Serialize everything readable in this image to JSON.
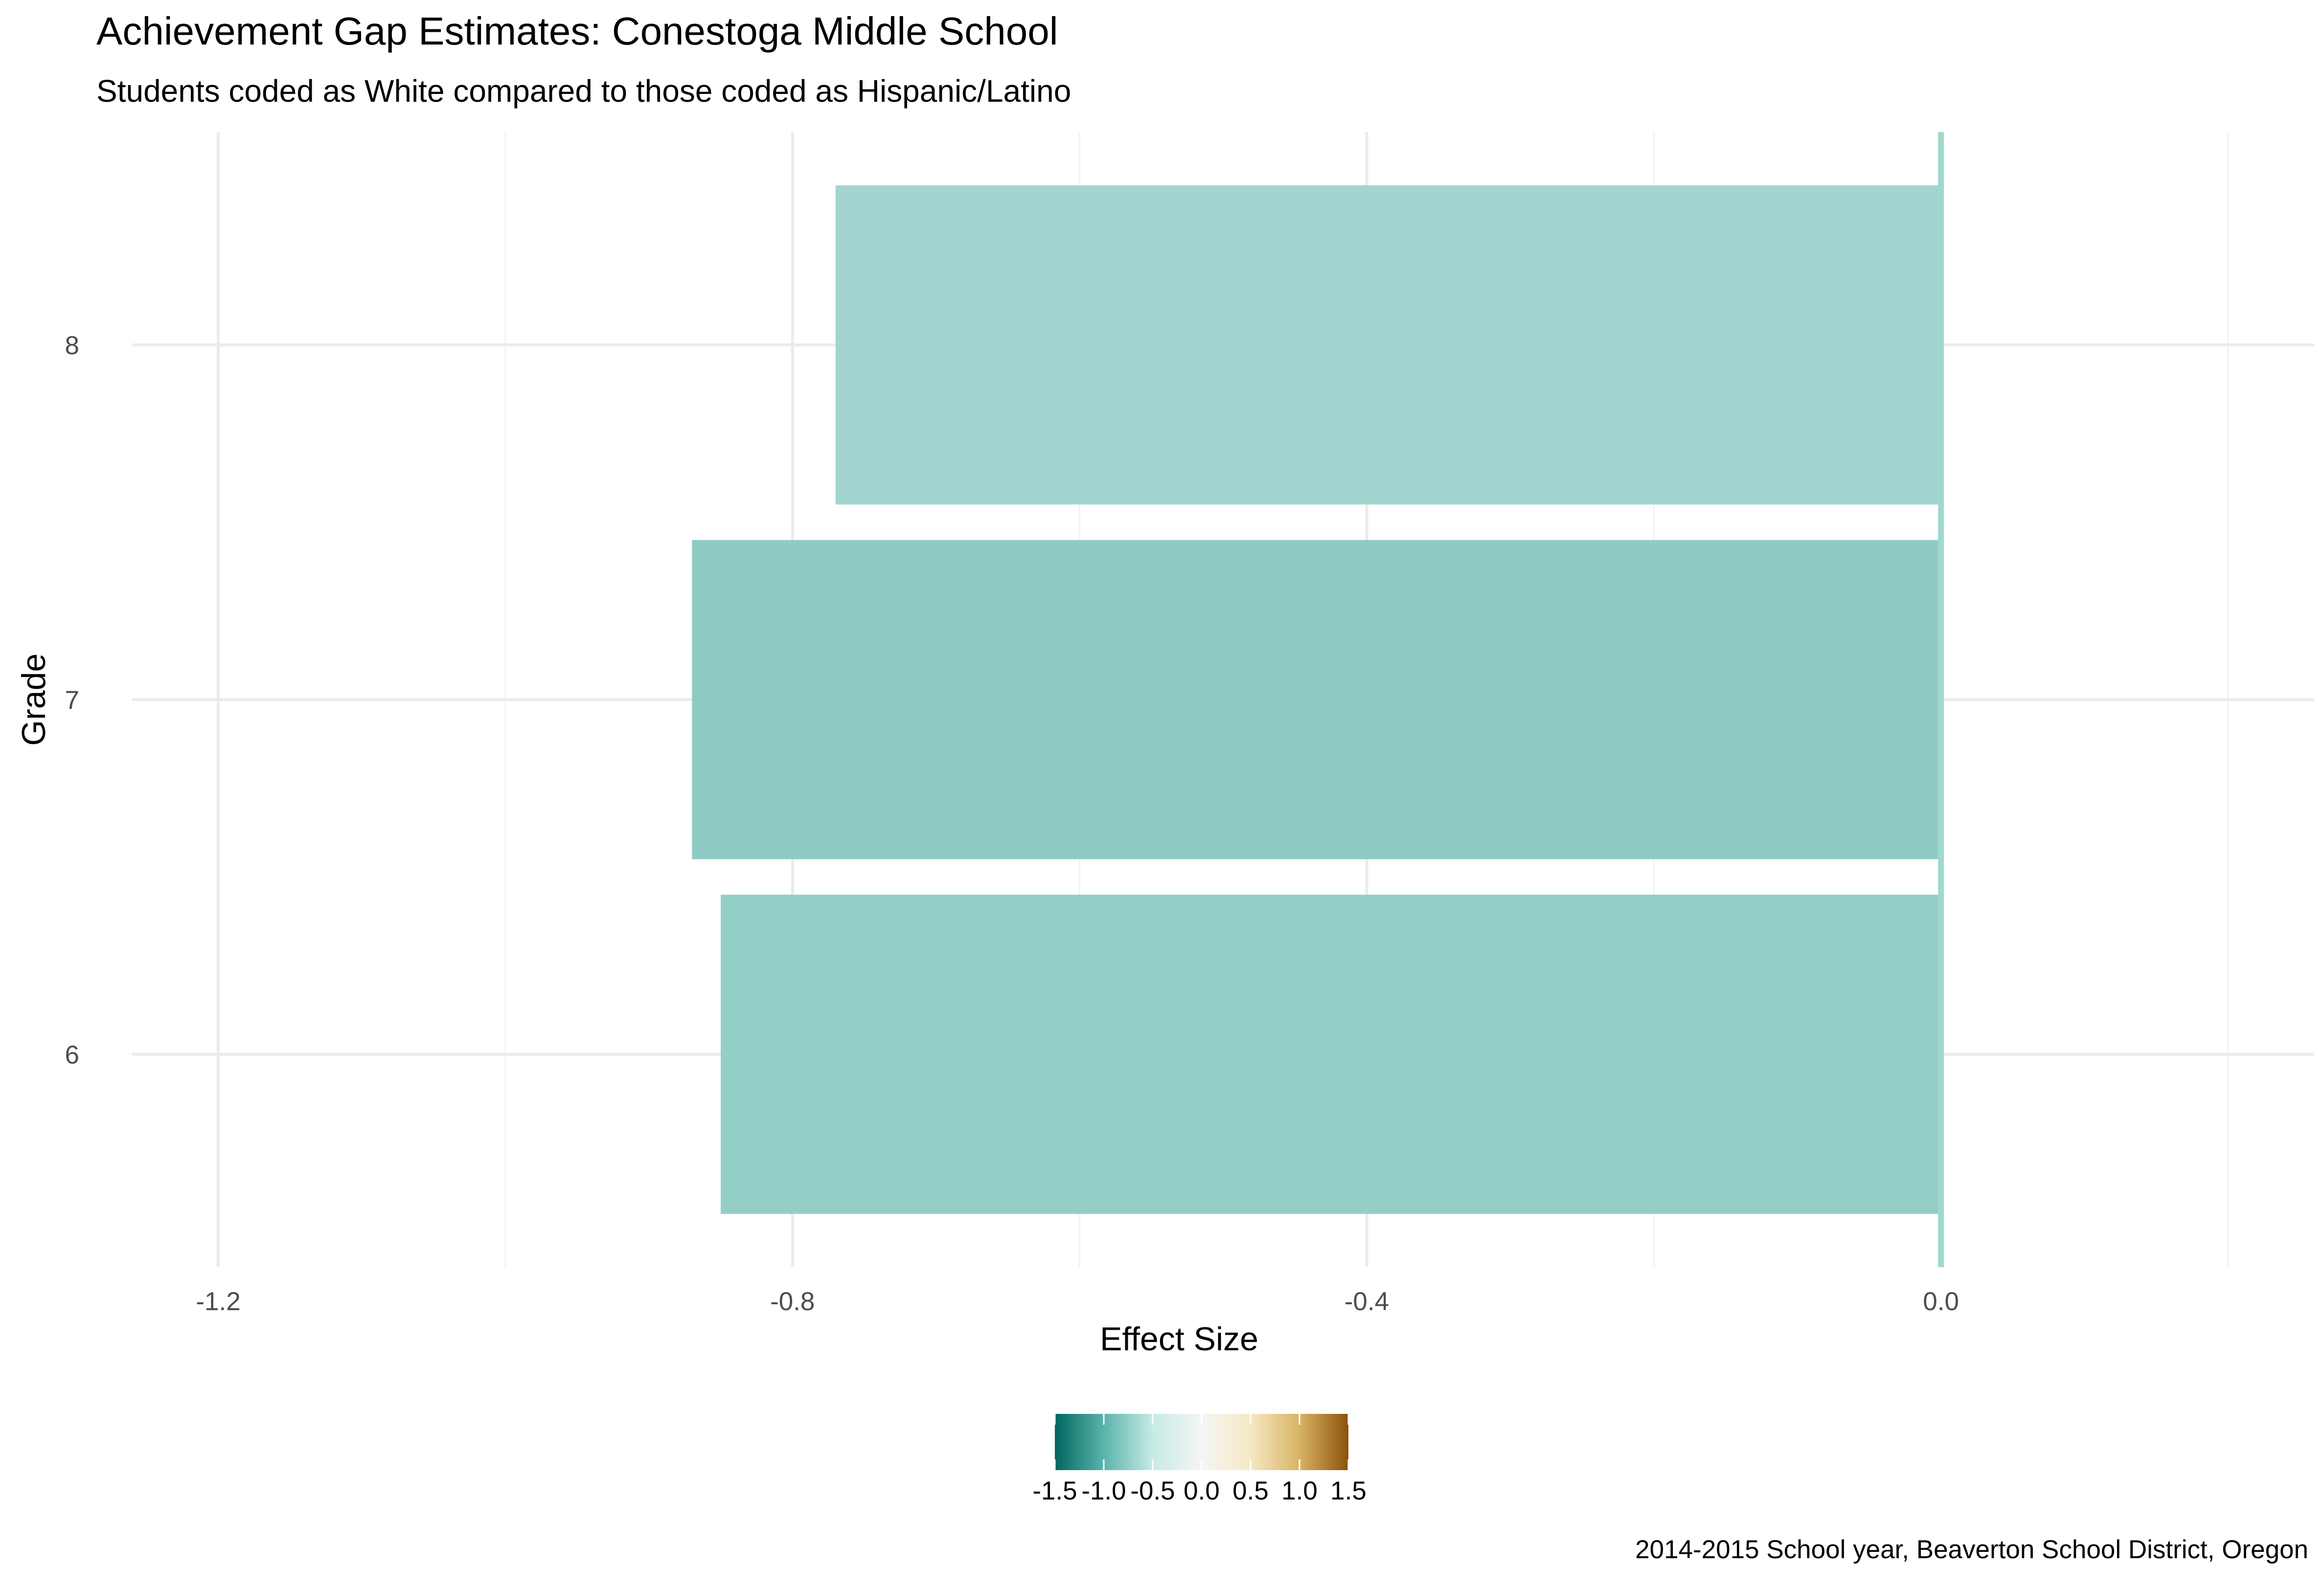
{
  "chart_data": {
    "type": "bar",
    "orientation": "horizontal",
    "title": "Achievement Gap Estimates: Conestoga Middle School",
    "subtitle": "Students coded as White compared to those coded as Hispanic/Latino",
    "caption": "2014-2015 School year, Beaverton School District, Oregon",
    "xlabel": "Effect Size",
    "ylabel": "Grade",
    "categories": [
      "6",
      "7",
      "8"
    ],
    "values": [
      -0.85,
      -0.87,
      -0.77
    ],
    "xlim": [
      -1.26,
      0.26
    ],
    "xticks": [
      -1.2,
      -0.8,
      -0.4,
      0.0
    ],
    "xtick_labels": [
      "-1.2",
      "-0.8",
      "-0.4",
      "0.0"
    ],
    "grid": true,
    "bar_colors": [
      "#94cfc7",
      "#8fcbc4",
      "#a2d5cf"
    ],
    "reference_line": {
      "x": 0.0,
      "color": "#9fd8cc"
    },
    "legend": {
      "type": "colorbar",
      "placement": "bottom",
      "range": [
        -1.5,
        1.5
      ],
      "tick_values": [
        -1.5,
        -1.0,
        -0.5,
        0.0,
        0.5,
        1.0,
        1.5
      ],
      "tick_labels": [
        "-1.5",
        "-1.0",
        "-0.5",
        "0.0",
        "0.5",
        "1.0",
        "1.5"
      ],
      "colors": [
        "#01665e",
        "#5ab4ac",
        "#c7eae5",
        "#f5f5f5",
        "#f6e8c3",
        "#d8b365",
        "#8c510a"
      ]
    }
  }
}
